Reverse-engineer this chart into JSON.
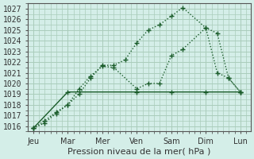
{
  "background_color": "#d4eee8",
  "grid_color": "#aaccbb",
  "line_color": "#1a5c2a",
  "days": [
    "Jeu",
    "Mar",
    "Mer",
    "Ven",
    "Sam",
    "Dim",
    "Lun"
  ],
  "day_x": [
    0,
    1,
    2,
    3,
    4,
    5,
    6
  ],
  "upper_line": {
    "x": [
      0,
      0.33,
      0.66,
      1.0,
      1.33,
      1.66,
      2.0,
      2.33,
      2.66,
      3.0,
      3.33,
      3.66,
      4.0,
      4.33,
      5.0,
      5.33,
      5.66,
      6.0
    ],
    "y": [
      1015.8,
      1016.5,
      1017.3,
      1018.0,
      1019.0,
      1020.5,
      1021.7,
      1021.7,
      1022.2,
      1023.8,
      1025.0,
      1025.5,
      1026.3,
      1027.1,
      1025.2,
      1024.7,
      1020.5,
      1019.2
    ]
  },
  "mid_line": {
    "x": [
      0,
      0.33,
      0.66,
      1.0,
      1.33,
      1.66,
      2.0,
      2.33,
      3.0,
      3.33,
      3.66,
      4.0,
      4.33,
      5.0,
      5.33,
      5.66,
      6.0
    ],
    "y": [
      1015.8,
      1016.3,
      1017.2,
      1018.0,
      1019.5,
      1020.7,
      1021.6,
      1021.5,
      1019.5,
      1020.0,
      1020.0,
      1022.6,
      1023.2,
      1025.2,
      1021.0,
      1020.5,
      1019.2
    ]
  },
  "lower_line": {
    "x": [
      0,
      1.0,
      3.0,
      4.0,
      5.0,
      6.0
    ],
    "y": [
      1015.8,
      1019.2,
      1019.2,
      1019.2,
      1019.2,
      1019.2
    ]
  },
  "ylim": [
    1015.5,
    1027.5
  ],
  "yticks": [
    1016,
    1017,
    1018,
    1019,
    1020,
    1021,
    1022,
    1023,
    1024,
    1025,
    1026,
    1027
  ],
  "xlabel": "Pression niveau de la mer( hPa )",
  "axis_fontsize": 8,
  "tick_fontsize": 7
}
